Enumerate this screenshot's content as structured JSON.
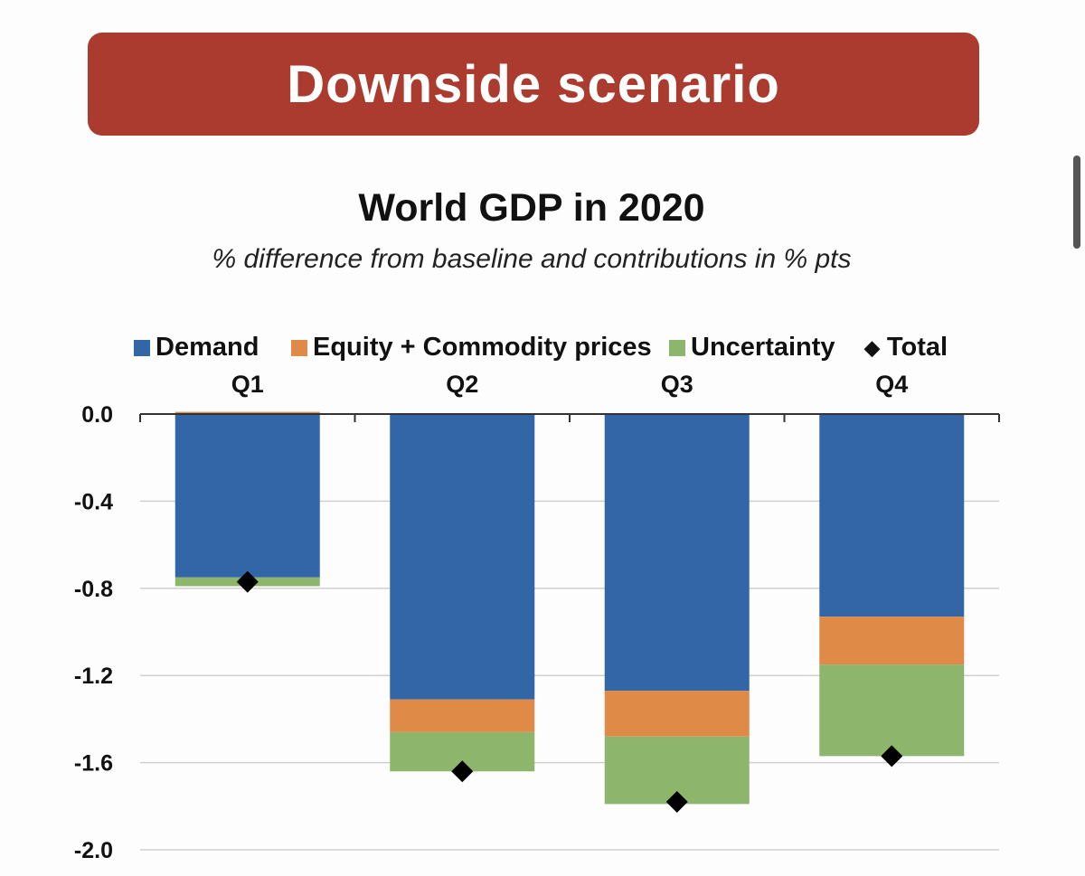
{
  "banner": {
    "title": "Downside scenario"
  },
  "colors": {
    "banner": "#ac3b2f",
    "demand": "#3366a6",
    "equity": "#e08a48",
    "uncertainty": "#8db56b",
    "total": "#000000"
  },
  "chart_data": {
    "type": "bar",
    "stacked": true,
    "title": "World GDP in 2020",
    "subtitle": "% difference from baseline and contributions in % pts",
    "categories": [
      "Q1",
      "Q2",
      "Q3",
      "Q4"
    ],
    "series": [
      {
        "name": "Demand",
        "color": "#3366a6",
        "values": [
          -0.75,
          -1.31,
          -1.27,
          -0.93
        ]
      },
      {
        "name": "Equity + Commodity prices",
        "color": "#e08a48",
        "values": [
          0.01,
          -0.15,
          -0.21,
          -0.22
        ]
      },
      {
        "name": "Uncertainty",
        "color": "#8db56b",
        "values": [
          -0.04,
          -0.18,
          -0.31,
          -0.42
        ]
      }
    ],
    "total": {
      "name": "Total",
      "marker": "diamond",
      "values": [
        -0.77,
        -1.64,
        -1.78,
        -1.57
      ]
    },
    "ylim": [
      -2.0,
      0.0
    ],
    "yticks": [
      "0.0",
      "-0.4",
      "-0.8",
      "-1.2",
      "-1.6",
      "-2.0"
    ],
    "ytick_values": [
      0.0,
      -0.4,
      -0.8,
      -1.2,
      -1.6,
      -2.0
    ],
    "grid": true,
    "legend_position": "top"
  }
}
